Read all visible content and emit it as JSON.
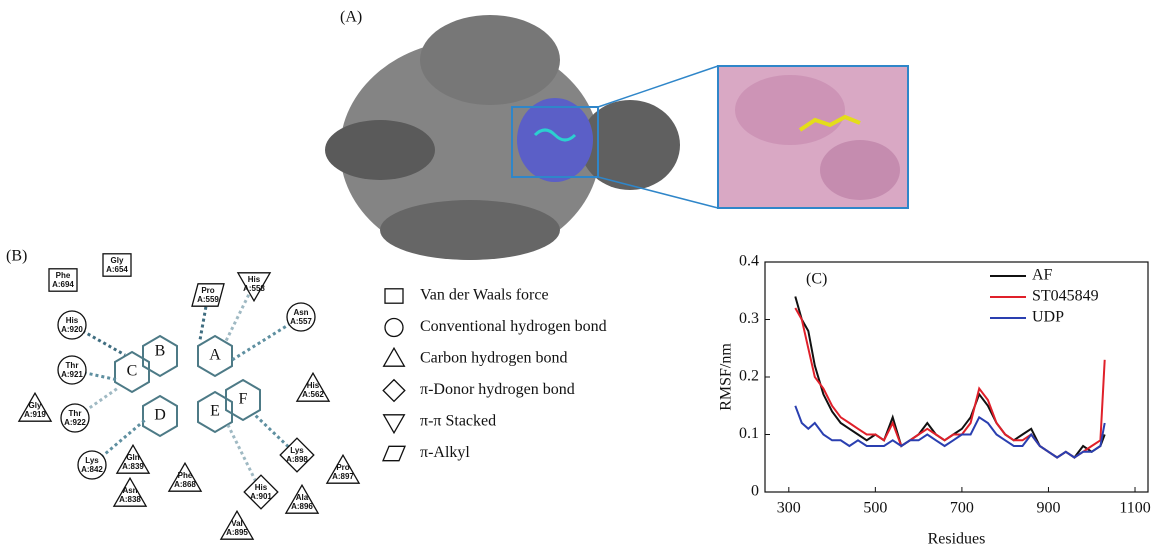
{
  "panel_labels": [
    "(A)",
    "(B)",
    "(C)"
  ],
  "diagram": {
    "rings": [
      "A",
      "B",
      "C",
      "D",
      "E",
      "F"
    ],
    "residues": [
      {
        "name": "Phe",
        "chain": "A:694",
        "shape": "square"
      },
      {
        "name": "Gly",
        "chain": "A:654",
        "shape": "square"
      },
      {
        "name": "Pro",
        "chain": "A:559",
        "shape": "parallelogram"
      },
      {
        "name": "His",
        "chain": "A:558",
        "shape": "down-triangle"
      },
      {
        "name": "Asn",
        "chain": "A:557",
        "shape": "circle"
      },
      {
        "name": "His",
        "chain": "A:920",
        "shape": "circle"
      },
      {
        "name": "His",
        "chain": "A:562",
        "shape": "triangle"
      },
      {
        "name": "Thr",
        "chain": "A:921",
        "shape": "circle"
      },
      {
        "name": "Gly",
        "chain": "A:919",
        "shape": "triangle"
      },
      {
        "name": "Thr",
        "chain": "A:922",
        "shape": "circle"
      },
      {
        "name": "Lys",
        "chain": "A:898",
        "shape": "diamond"
      },
      {
        "name": "Pro",
        "chain": "A:897",
        "shape": "triangle"
      },
      {
        "name": "Gln",
        "chain": "A:839",
        "shape": "triangle"
      },
      {
        "name": "Lys",
        "chain": "A:842",
        "shape": "circle"
      },
      {
        "name": "Phe",
        "chain": "A:868",
        "shape": "triangle"
      },
      {
        "name": "His",
        "chain": "A:901",
        "shape": "diamond"
      },
      {
        "name": "Ala",
        "chain": "A:896",
        "shape": "triangle"
      },
      {
        "name": "Asn",
        "chain": "A:838",
        "shape": "triangle"
      },
      {
        "name": "Val",
        "chain": "A:895",
        "shape": "triangle"
      }
    ],
    "legend": [
      {
        "label": "Van der Waals force",
        "shape": "square"
      },
      {
        "label": "Conventional hydrogen bond",
        "shape": "circle"
      },
      {
        "label": "Carbon hydrogen bond",
        "shape": "triangle"
      },
      {
        "label": "π-Donor hydrogen bond",
        "shape": "diamond"
      },
      {
        "label": "π-π Stacked",
        "shape": "down-triangle"
      },
      {
        "label": "π-Alkyl",
        "shape": "parallelogram"
      }
    ]
  },
  "chart_data": {
    "type": "line",
    "x_label": "Residues",
    "y_label": "RMSF/nm",
    "x": [
      315,
      330,
      345,
      360,
      380,
      400,
      420,
      440,
      460,
      480,
      500,
      520,
      540,
      560,
      580,
      600,
      620,
      640,
      660,
      680,
      700,
      720,
      740,
      760,
      780,
      800,
      820,
      840,
      860,
      880,
      900,
      920,
      940,
      960,
      980,
      1000,
      1020,
      1030
    ],
    "series": [
      {
        "name": "AF",
        "color": "#111111",
        "values": [
          0.34,
          0.3,
          0.28,
          0.22,
          0.17,
          0.14,
          0.12,
          0.11,
          0.1,
          0.09,
          0.1,
          0.09,
          0.13,
          0.08,
          0.09,
          0.1,
          0.12,
          0.1,
          0.09,
          0.1,
          0.11,
          0.13,
          0.17,
          0.15,
          0.12,
          0.1,
          0.09,
          0.1,
          0.11,
          0.08,
          0.07,
          0.06,
          0.07,
          0.06,
          0.08,
          0.07,
          0.08,
          0.1
        ]
      },
      {
        "name": "ST045849",
        "color": "#e0202a",
        "values": [
          0.32,
          0.3,
          0.25,
          0.2,
          0.18,
          0.15,
          0.13,
          0.12,
          0.11,
          0.1,
          0.1,
          0.09,
          0.12,
          0.08,
          0.09,
          0.1,
          0.11,
          0.1,
          0.09,
          0.1,
          0.1,
          0.12,
          0.18,
          0.16,
          0.12,
          0.1,
          0.09,
          0.09,
          0.1,
          0.08,
          0.07,
          0.06,
          0.07,
          0.06,
          0.07,
          0.08,
          0.09,
          0.23
        ]
      },
      {
        "name": "UDP",
        "color": "#2a3fb0",
        "values": [
          0.15,
          0.12,
          0.11,
          0.12,
          0.1,
          0.09,
          0.09,
          0.08,
          0.09,
          0.08,
          0.08,
          0.08,
          0.09,
          0.08,
          0.09,
          0.09,
          0.1,
          0.09,
          0.08,
          0.09,
          0.1,
          0.1,
          0.13,
          0.12,
          0.1,
          0.09,
          0.08,
          0.08,
          0.1,
          0.08,
          0.07,
          0.06,
          0.07,
          0.06,
          0.07,
          0.07,
          0.08,
          0.12
        ]
      }
    ],
    "xlim": [
      245,
      1130
    ],
    "ylim": [
      0,
      0.4
    ],
    "xticks": [
      300,
      500,
      700,
      900,
      1100
    ],
    "yticks": [
      0,
      0.1,
      0.2,
      0.3,
      0.4
    ],
    "legend_position": "upper-right"
  }
}
